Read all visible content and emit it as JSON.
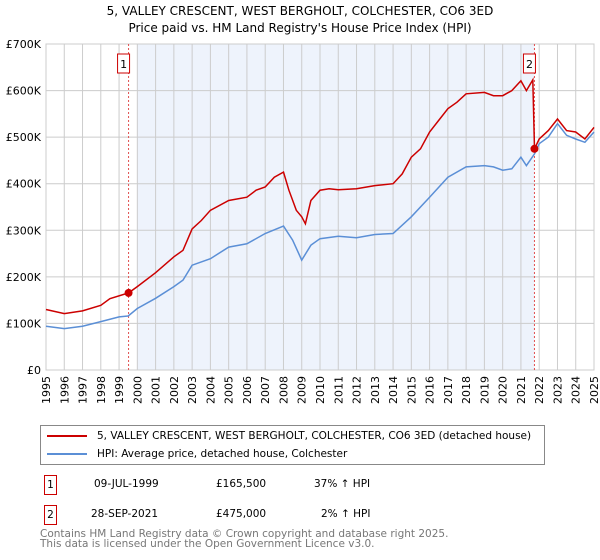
{
  "title": "5, VALLEY CRESCENT, WEST BERGHOLT, COLCHESTER, CO6 3ED",
  "subtitle": "Price paid vs. HM Land Registry's House Price Index (HPI)",
  "chart_data": {
    "type": "line",
    "title": "5, VALLEY CRESCENT, WEST BERGHOLT, COLCHESTER, CO6 3ED",
    "subtitle": "Price paid vs. HM Land Registry's House Price Index (HPI)",
    "xlim": [
      1995,
      2025
    ],
    "ylim": [
      0,
      700000
    ],
    "xticks": [
      "1995",
      "1996",
      "1997",
      "1998",
      "1999",
      "2000",
      "2001",
      "2002",
      "2003",
      "2004",
      "2005",
      "2006",
      "2007",
      "2008",
      "2009",
      "2010",
      "2011",
      "2012",
      "2013",
      "2014",
      "2015",
      "2016",
      "2017",
      "2018",
      "2019",
      "2020",
      "2021",
      "2022",
      "2023",
      "2024",
      "2025"
    ],
    "yticks": [
      {
        "v": 0,
        "label": "£0"
      },
      {
        "v": 100000,
        "label": "£100K"
      },
      {
        "v": 200000,
        "label": "£200K"
      },
      {
        "v": 300000,
        "label": "£300K"
      },
      {
        "v": 400000,
        "label": "£400K"
      },
      {
        "v": 500000,
        "label": "£500K"
      },
      {
        "v": 600000,
        "label": "£600K"
      },
      {
        "v": 700000,
        "label": "£700K"
      }
    ],
    "grid": true,
    "shaded_range": [
      2000.0,
      2021.74
    ],
    "series": [
      {
        "name": "5, VALLEY CRESCENT, WEST BERGHOLT, COLCHESTER, CO6 3ED (detached house)",
        "color": "#cc0000",
        "x": [
          1995,
          1996,
          1997,
          1998,
          1998.5,
          1999.52,
          2000,
          2001,
          2002,
          2002.5,
          2003,
          2003.5,
          2004,
          2005,
          2006,
          2006.5,
          2007,
          2007.5,
          2008,
          2008.3,
          2008.7,
          2009,
          2009.2,
          2009.5,
          2010,
          2010.5,
          2011,
          2012,
          2013,
          2014,
          2014.5,
          2015,
          2015.5,
          2016,
          2016.5,
          2017,
          2017.5,
          2018,
          2019,
          2019.5,
          2020,
          2020.5,
          2021,
          2021.3,
          2021.65,
          2021.74,
          2022,
          2022.5,
          2023,
          2023.5,
          2024,
          2024.5,
          2025
        ],
        "y": [
          130000,
          121000,
          127000,
          139000,
          153000,
          165500,
          179000,
          209000,
          243000,
          257000,
          303000,
          321000,
          343000,
          364000,
          371000,
          386000,
          393000,
          414000,
          425000,
          386000,
          343000,
          329000,
          314000,
          364000,
          386000,
          389000,
          387000,
          389000,
          396000,
          400000,
          421000,
          457000,
          475000,
          511000,
          536000,
          561000,
          575000,
          593000,
          596000,
          589000,
          589000,
          600000,
          621000,
          600000,
          623000,
          475000,
          496000,
          514000,
          539000,
          514000,
          511000,
          496000,
          521000
        ]
      },
      {
        "name": "HPI: Average price, detached house, Colchester",
        "color": "#5b8fd6",
        "x": [
          1995,
          1996,
          1997,
          1998,
          1999,
          1999.5,
          2000,
          2001,
          2002,
          2002.5,
          2003,
          2004,
          2005,
          2006,
          2007,
          2008,
          2008.5,
          2009,
          2009.5,
          2010,
          2011,
          2012,
          2013,
          2014,
          2015,
          2016,
          2017,
          2018,
          2019,
          2019.5,
          2020,
          2020.5,
          2021,
          2021.3,
          2021.74,
          2022,
          2022.5,
          2023,
          2023.5,
          2024,
          2024.5,
          2025
        ],
        "y": [
          94000,
          89000,
          94000,
          104000,
          114000,
          116000,
          132000,
          154000,
          179000,
          193000,
          225000,
          239000,
          264000,
          271000,
          293000,
          309000,
          279000,
          236000,
          268000,
          282000,
          287000,
          284000,
          291000,
          293000,
          329000,
          371000,
          414000,
          436000,
          439000,
          436000,
          429000,
          432000,
          457000,
          439000,
          464000,
          486000,
          500000,
          529000,
          504000,
          496000,
          489000,
          511000
        ]
      }
    ],
    "sales": [
      {
        "label": "1",
        "x": 1999.52,
        "y": 165500
      },
      {
        "label": "2",
        "x": 2021.74,
        "y": 475000
      }
    ]
  },
  "legend": [
    {
      "label": "5, VALLEY CRESCENT, WEST BERGHOLT, COLCHESTER, CO6 3ED (detached house)",
      "color": "#cc0000"
    },
    {
      "label": "HPI: Average price, detached house, Colchester",
      "color": "#5b8fd6"
    }
  ],
  "transactions": [
    {
      "num": "1",
      "date": "09-JUL-1999",
      "price": "£165,500",
      "hpi": "37% ↑ HPI"
    },
    {
      "num": "2",
      "date": "28-SEP-2021",
      "price": "£475,000",
      "hpi": "2% ↑ HPI"
    }
  ],
  "footer": {
    "line1": "Contains HM Land Registry data © Crown copyright and database right 2025.",
    "line2": "This data is licensed under the Open Government Licence v3.0."
  }
}
